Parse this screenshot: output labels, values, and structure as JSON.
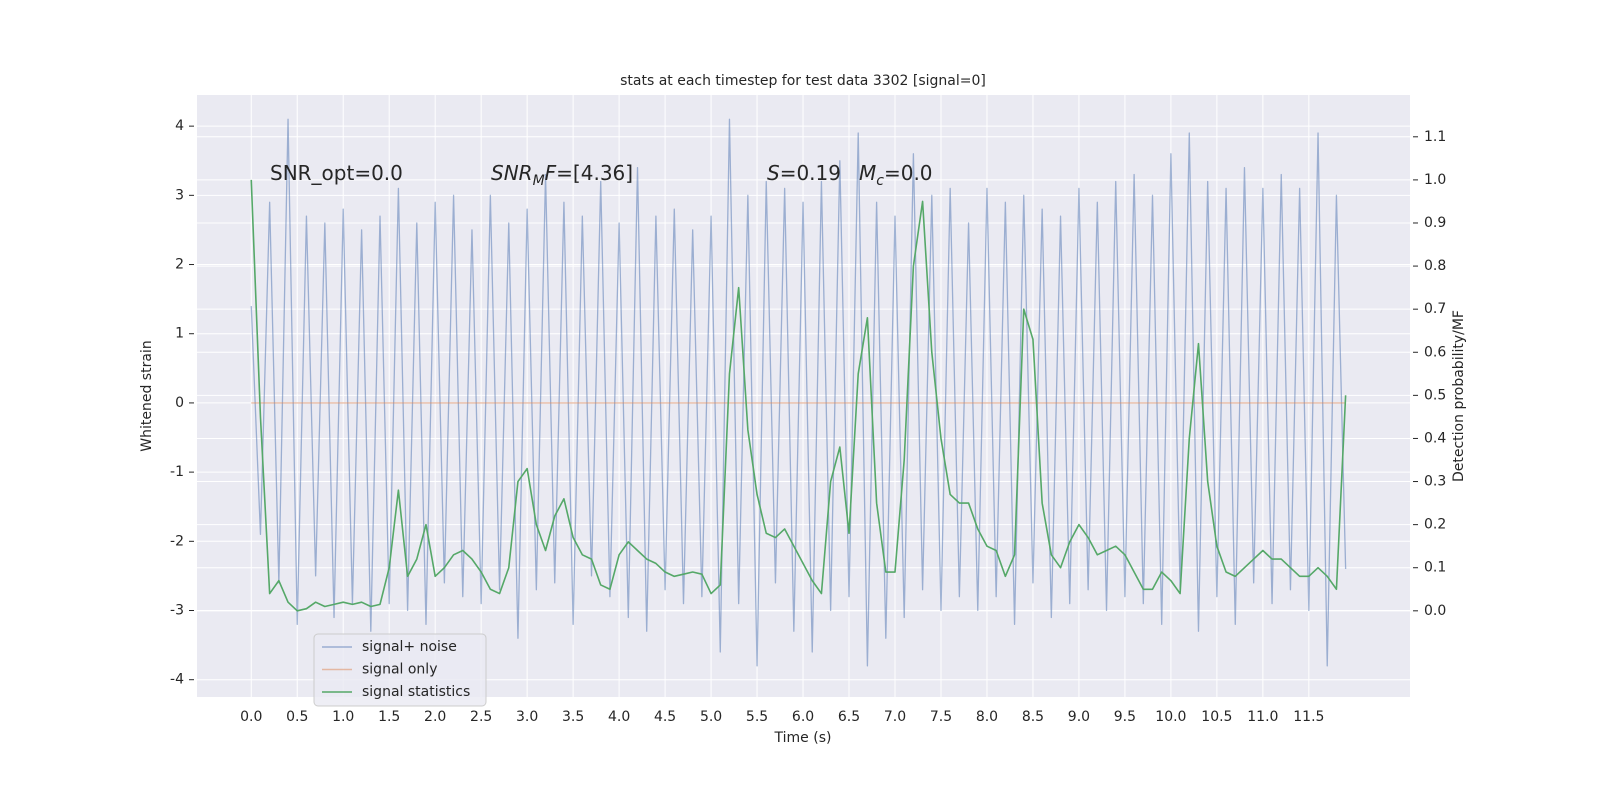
{
  "chart_data": {
    "type": "line",
    "title": "stats at each timestep for test data 3302 [signal=0]",
    "xlabel": "Time (s)",
    "ylabel": "Whitened strain",
    "y2label": "Detection probability/MF",
    "xlim": [
      -0.59,
      12.6
    ],
    "ylim": [
      -4.25,
      4.45
    ],
    "y2lim": [
      -0.2,
      1.197
    ],
    "xticks": [
      {
        "value": 0,
        "label": "0.0"
      },
      0.5,
      {
        "value": 1,
        "label": "1.0"
      },
      1.5,
      {
        "value": 2,
        "label": "2.0"
      },
      2.5,
      {
        "value": 3,
        "label": "3.0"
      },
      3.5,
      {
        "value": 4,
        "label": "4.0"
      },
      4.5,
      {
        "value": 5,
        "label": "5.0"
      },
      5.5,
      {
        "value": 6,
        "label": "6.0"
      },
      6.5,
      {
        "value": 7,
        "label": "7.0"
      },
      7.5,
      {
        "value": 8,
        "label": "8.0"
      },
      8.5,
      {
        "value": 9,
        "label": "9.0"
      },
      9.5,
      {
        "value": 10,
        "label": "10.0"
      },
      10.5,
      {
        "value": 11,
        "label": "11.0"
      },
      11.5
    ],
    "yticks": [
      -4,
      -3,
      -2,
      -1,
      0,
      1,
      2,
      3,
      4
    ],
    "y2ticks": [
      {
        "value": 0,
        "label": "0.0"
      },
      0.1,
      0.2,
      0.3,
      0.4,
      0.5,
      0.6,
      0.7,
      0.8,
      0.9,
      {
        "value": 1,
        "label": "1.0"
      },
      1.1
    ],
    "grid": true,
    "legend": "lower left",
    "annotations": [
      {
        "parts": [
          {
            "text": "SNR_opt=0.0"
          }
        ]
      },
      {
        "parts": [
          {
            "text": "SNR",
            "italic": true
          },
          {
            "text": "M",
            "italic": true,
            "sub": true
          },
          {
            "text": "F",
            "italic": true
          },
          {
            "text": "=[4.36]"
          }
        ]
      },
      {
        "parts": [
          {
            "text": "S",
            "italic": true
          },
          {
            "text": "=0.19"
          }
        ]
      },
      {
        "parts": [
          {
            "text": "M",
            "italic": true
          },
          {
            "text": "c",
            "italic": true,
            "sub": true
          },
          {
            "text": "=0.0"
          }
        ]
      }
    ],
    "x": [
      0.0,
      0.1,
      0.2,
      0.3,
      0.4,
      0.5,
      0.6,
      0.7,
      0.8,
      0.9,
      1.0,
      1.1,
      1.2,
      1.3,
      1.4,
      1.5,
      1.6,
      1.7,
      1.8,
      1.9,
      2.0,
      2.1,
      2.2,
      2.3,
      2.4,
      2.5,
      2.6,
      2.7,
      2.8,
      2.9,
      3.0,
      3.1,
      3.2,
      3.3,
      3.4,
      3.5,
      3.6,
      3.7,
      3.8,
      3.9,
      4.0,
      4.1,
      4.2,
      4.3,
      4.4,
      4.5,
      4.6,
      4.7,
      4.8,
      4.9,
      5.0,
      5.1,
      5.2,
      5.3,
      5.4,
      5.5,
      5.6,
      5.7,
      5.8,
      5.9,
      6.0,
      6.1,
      6.2,
      6.3,
      6.4,
      6.5,
      6.6,
      6.7,
      6.8,
      6.9,
      7.0,
      7.1,
      7.2,
      7.3,
      7.4,
      7.5,
      7.6,
      7.7,
      7.8,
      7.9,
      8.0,
      8.1,
      8.2,
      8.3,
      8.4,
      8.5,
      8.6,
      8.7,
      8.8,
      8.9,
      9.0,
      9.1,
      9.2,
      9.3,
      9.4,
      9.5,
      9.6,
      9.7,
      9.8,
      9.9,
      10.0,
      10.1,
      10.2,
      10.3,
      10.4,
      10.5,
      10.6,
      10.7,
      10.8,
      10.9,
      11.0,
      11.1,
      11.2,
      11.3,
      11.4,
      11.5,
      11.6,
      11.7,
      11.8,
      11.9
    ],
    "series": [
      {
        "name": "signal+ noise",
        "color": "#4c72b0",
        "alpha": 0.5,
        "axis": "y",
        "values": [
          1.4,
          -1.9,
          2.9,
          -2.6,
          4.1,
          -3.2,
          2.7,
          -2.5,
          2.6,
          -3.1,
          2.8,
          -2.9,
          2.5,
          -3.3,
          2.7,
          -2.9,
          3.1,
          -3.0,
          2.6,
          -3.2,
          2.9,
          -2.6,
          3.0,
          -2.8,
          2.5,
          -2.9,
          3.0,
          -2.7,
          2.6,
          -3.4,
          2.8,
          -2.7,
          3.3,
          -2.6,
          2.9,
          -3.2,
          2.7,
          -2.5,
          3.2,
          -2.8,
          2.6,
          -3.1,
          3.4,
          -3.3,
          2.7,
          -2.7,
          2.8,
          -2.9,
          2.5,
          -2.8,
          2.7,
          -3.6,
          4.1,
          -2.9,
          3.0,
          -3.8,
          3.2,
          -2.6,
          3.1,
          -3.3,
          2.9,
          -3.6,
          3.2,
          -3.0,
          3.5,
          -2.8,
          3.9,
          -3.8,
          2.9,
          -3.4,
          2.7,
          -3.1,
          3.6,
          -2.7,
          3.0,
          -3.0,
          3.1,
          -2.8,
          2.6,
          -3.0,
          3.1,
          -2.8,
          2.9,
          -3.2,
          3.0,
          -2.6,
          2.8,
          -3.1,
          2.7,
          -2.9,
          3.1,
          -2.7,
          2.9,
          -3.0,
          3.2,
          -2.8,
          3.3,
          -2.9,
          3.0,
          -3.2,
          3.6,
          -2.7,
          3.9,
          -3.3,
          3.2,
          -2.8,
          3.1,
          -3.2,
          3.4,
          -2.6,
          3.1,
          -2.9,
          3.3,
          -2.7,
          3.1,
          -3.0,
          3.9,
          -3.8,
          3.0,
          -2.4
        ]
      },
      {
        "name": "signal only",
        "color": "#dd8452",
        "alpha": 0.5,
        "axis": "y",
        "values": [
          0,
          0,
          0,
          0,
          0,
          0,
          0,
          0,
          0,
          0,
          0,
          0,
          0,
          0,
          0,
          0,
          0,
          0,
          0,
          0,
          0,
          0,
          0,
          0,
          0,
          0,
          0,
          0,
          0,
          0,
          0,
          0,
          0,
          0,
          0,
          0,
          0,
          0,
          0,
          0,
          0,
          0,
          0,
          0,
          0,
          0,
          0,
          0,
          0,
          0,
          0,
          0,
          0,
          0,
          0,
          0,
          0,
          0,
          0,
          0,
          0,
          0,
          0,
          0,
          0,
          0,
          0,
          0,
          0,
          0,
          0,
          0,
          0,
          0,
          0,
          0,
          0,
          0,
          0,
          0,
          0,
          0,
          0,
          0,
          0,
          0,
          0,
          0,
          0,
          0,
          0,
          0,
          0,
          0,
          0,
          0,
          0,
          0,
          0,
          0,
          0,
          0,
          0,
          0,
          0,
          0,
          0,
          0,
          0,
          0,
          0,
          0,
          0,
          0,
          0,
          0,
          0,
          0,
          0,
          0
        ]
      },
      {
        "name": "signal statistics",
        "color": "#55a868",
        "alpha": 1,
        "axis": "y2",
        "values": [
          1.0,
          0.45,
          0.04,
          0.07,
          0.02,
          0.0,
          0.005,
          0.02,
          0.01,
          0.015,
          0.02,
          0.015,
          0.02,
          0.01,
          0.015,
          0.1,
          0.28,
          0.08,
          0.12,
          0.2,
          0.08,
          0.1,
          0.13,
          0.14,
          0.12,
          0.09,
          0.05,
          0.04,
          0.1,
          0.3,
          0.33,
          0.2,
          0.14,
          0.22,
          0.26,
          0.17,
          0.13,
          0.12,
          0.06,
          0.05,
          0.13,
          0.16,
          0.14,
          0.12,
          0.11,
          0.09,
          0.08,
          0.085,
          0.09,
          0.085,
          0.04,
          0.06,
          0.55,
          0.75,
          0.42,
          0.27,
          0.18,
          0.17,
          0.19,
          0.15,
          0.11,
          0.07,
          0.04,
          0.3,
          0.38,
          0.18,
          0.55,
          0.68,
          0.25,
          0.09,
          0.09,
          0.35,
          0.8,
          0.95,
          0.6,
          0.4,
          0.27,
          0.25,
          0.25,
          0.19,
          0.15,
          0.14,
          0.08,
          0.13,
          0.7,
          0.63,
          0.25,
          0.13,
          0.1,
          0.16,
          0.2,
          0.17,
          0.13,
          0.14,
          0.15,
          0.13,
          0.09,
          0.05,
          0.05,
          0.09,
          0.07,
          0.04,
          0.4,
          0.62,
          0.3,
          0.15,
          0.09,
          0.08,
          0.1,
          0.12,
          0.14,
          0.12,
          0.12,
          0.1,
          0.08,
          0.08,
          0.1,
          0.08,
          0.05,
          0.5
        ]
      }
    ]
  }
}
